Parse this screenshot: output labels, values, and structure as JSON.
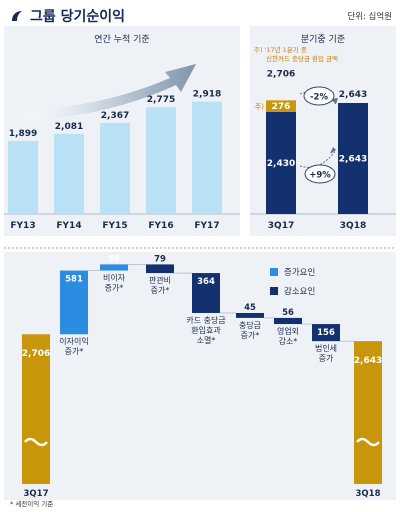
{
  "header": {
    "title": "그룹 당기순이익",
    "unit": "단위: 십억원"
  },
  "colors": {
    "navy": "#0f2a6b",
    "light_blue": "#b8e1f6",
    "bright_blue": "#2a8de2",
    "gold": "#c8960a",
    "dark_navy": "#13306f"
  },
  "chart_data": [
    {
      "type": "bar",
      "title": "연간 누적 기준",
      "categories": [
        "FY13",
        "FY14",
        "FY15",
        "FY16",
        "FY17"
      ],
      "values": [
        1899,
        2081,
        2367,
        2775,
        2918
      ],
      "value_labels": [
        "1,899",
        "2,081",
        "2,367",
        "2,775",
        "2,918"
      ],
      "arrow": "upward trend arrow",
      "grid": false,
      "legend": "none"
    },
    {
      "type": "bar",
      "title": "분기중 기준",
      "categories": [
        "3Q17",
        "3Q18"
      ],
      "series": [
        {
          "name": "",
          "values": [
            2430,
            2643
          ],
          "labels": [
            "2,430",
            "2,643"
          ]
        },
        {
          "name": "",
          "values": [
            276,
            0
          ],
          "labels": [
            "276",
            ""
          ]
        }
      ],
      "totals": {
        "3Q17": "2,706"
      },
      "note_marker": "주)",
      "footnote": "주) '17년 1분기 중\n신한카드 충당금 환입 금액",
      "annotations": [
        "-2%",
        "+9%"
      ],
      "legend": "none"
    },
    {
      "type": "waterfall",
      "legend": "top-right",
      "legend_items": [
        {
          "label": "증가요인",
          "color": "#2a8de2"
        },
        {
          "label": "감소요인",
          "color": "#13306f"
        }
      ],
      "start": {
        "label": "3Q17",
        "value": 2706,
        "value_label": "2,706"
      },
      "end": {
        "label": "3Q18",
        "value": 2643,
        "value_label": "2,643"
      },
      "steps": [
        {
          "label": "이자이익\n증가*",
          "value": 581,
          "value_label": "581",
          "kind": "increase"
        },
        {
          "label": "비이자\n증가*",
          "value": 56,
          "value_label": "56",
          "kind": "increase"
        },
        {
          "label": "판관비\n증가*",
          "value": -79,
          "value_label": "79",
          "kind": "decrease"
        },
        {
          "label": "카드 충당금\n환입효과\n소멸*",
          "value": -364,
          "value_label": "364",
          "kind": "decrease"
        },
        {
          "label": "충당금\n증가*",
          "value": -45,
          "value_label": "45",
          "kind": "decrease"
        },
        {
          "label": "영업외\n감소*",
          "value": -56,
          "value_label": "56",
          "kind": "decrease"
        },
        {
          "label": "법인세\n증가",
          "value": -156,
          "value_label": "156",
          "kind": "decrease"
        }
      ],
      "footnote": "* 세전이익 기준"
    }
  ]
}
